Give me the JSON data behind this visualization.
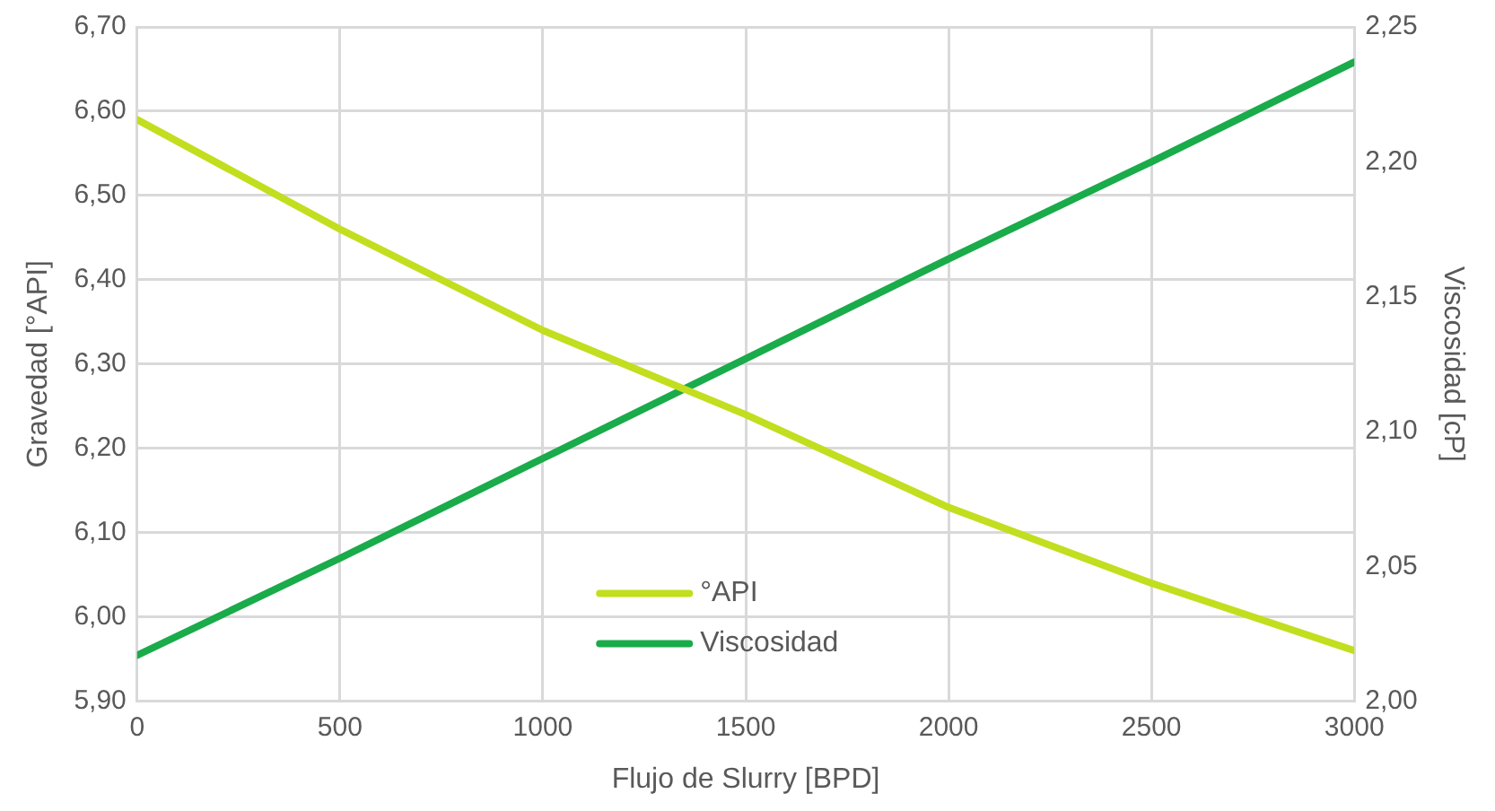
{
  "chart_data": {
    "type": "line",
    "xlabel": "Flujo de Slurry [BPD]",
    "ylabel": "Gravedad [°API]",
    "y2label": "Viscosidad [cP]",
    "x": [
      0,
      500,
      1000,
      1500,
      2000,
      2500,
      3000
    ],
    "series": [
      {
        "name": "°API",
        "color": "#c2de1e",
        "values": [
          6.59,
          6.46,
          6.34,
          6.24,
          6.13,
          6.04,
          5.96
        ]
      },
      {
        "name": "Viscosidad",
        "color": "#1aab4a",
        "axis": "y2",
        "values": [
          2.017,
          2.053,
          2.09,
          2.127,
          2.164,
          2.2,
          2.237
        ]
      }
    ],
    "xlim": [
      0,
      3000
    ],
    "xticks": [
      0,
      500,
      1000,
      1500,
      2000,
      2500,
      3000
    ],
    "ylim": [
      5.9,
      6.7
    ],
    "yticks": [
      {
        "value": 5.9,
        "label": "5,90"
      },
      {
        "value": 6.0,
        "label": "6,00"
      },
      {
        "value": 6.1,
        "label": "6,10"
      },
      {
        "value": 6.2,
        "label": "6,20"
      },
      {
        "value": 6.3,
        "label": "6,30"
      },
      {
        "value": 6.4,
        "label": "6,40"
      },
      {
        "value": 6.5,
        "label": "6,50"
      },
      {
        "value": 6.6,
        "label": "6,60"
      },
      {
        "value": 6.7,
        "label": "6,70"
      }
    ],
    "y2lim": [
      2.0,
      2.25
    ],
    "y2ticks": [
      {
        "value": 2.0,
        "label": "2,00"
      },
      {
        "value": 2.05,
        "label": "2,05"
      },
      {
        "value": 2.1,
        "label": "2,10"
      },
      {
        "value": 2.15,
        "label": "2,15"
      },
      {
        "value": 2.2,
        "label": "2,20"
      },
      {
        "value": 2.25,
        "label": "2,25"
      }
    ],
    "grid": true,
    "legend": "bottom",
    "marker": "none",
    "line_style": "solid"
  }
}
